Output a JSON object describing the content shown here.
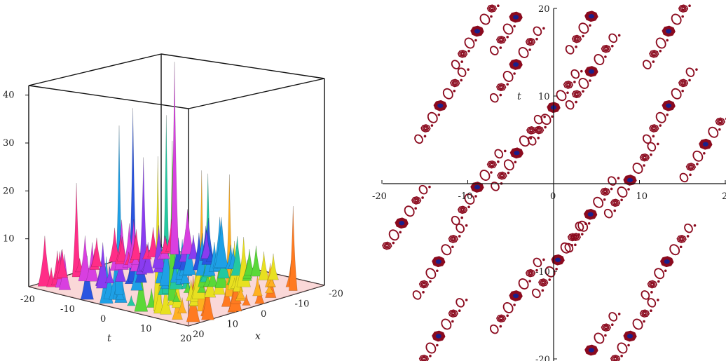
{
  "chart_data": [
    {
      "type": "surface3d",
      "title": "",
      "x_axis": {
        "label": "x",
        "ticks": [
          "-20",
          "-10",
          "0",
          "10",
          "20"
        ],
        "range": [
          -20,
          20
        ]
      },
      "t_axis": {
        "label": "t",
        "ticks": [
          "-20",
          "-10",
          "0",
          "10",
          "20"
        ],
        "range": [
          -20,
          20
        ]
      },
      "z_axis": {
        "ticks": [
          "10",
          "20",
          "30",
          "40"
        ],
        "range": [
          0,
          42
        ]
      },
      "colors": [
        "#ff2d87",
        "#d83fe0",
        "#8a3cf0",
        "#2a55e0",
        "#1ea0e6",
        "#24c8a0",
        "#5ad838",
        "#e8e020",
        "#ffb020",
        "#ff7a20",
        "#f04050"
      ],
      "peaks": [
        {
          "t": -15,
          "x": -18,
          "z": 41
        },
        {
          "t": -8,
          "x": 3,
          "z": 37
        },
        {
          "t": -4,
          "x": 12,
          "z": 36
        },
        {
          "t": 2,
          "x": 5,
          "z": 38
        },
        {
          "t": 6,
          "x": 8,
          "z": 34
        },
        {
          "t": 9,
          "x": 16,
          "z": 33
        },
        {
          "t": -12,
          "x": -5,
          "z": 24
        },
        {
          "t": 12,
          "x": -2,
          "z": 26
        },
        {
          "t": 15,
          "x": 10,
          "z": 30
        },
        {
          "t": 0,
          "x": -10,
          "z": 22
        },
        {
          "t": -18,
          "x": 8,
          "z": 20
        },
        {
          "t": 18,
          "x": -14,
          "z": 18
        }
      ]
    },
    {
      "type": "contour",
      "title": "",
      "x_axis": {
        "label": "",
        "ticks": [
          "-20",
          "-10",
          "0",
          "10",
          "20"
        ],
        "range": [
          -20,
          20
        ]
      },
      "y_axis": {
        "label": "t",
        "ticks": [
          "-20",
          "-10",
          "10",
          "20"
        ],
        "range": [
          -20,
          20
        ]
      },
      "line_color": "#8b0a1e",
      "core_color": "#1a1f8a",
      "lattice": {
        "period_x": 10,
        "period_t": 4.8,
        "tilt": 1.22
      },
      "primary_centers": [
        {
          "x": -13.2,
          "t": 8.9
        },
        {
          "x": -4.3,
          "t": 3.5
        },
        {
          "x": 4.3,
          "t": -3.5
        },
        {
          "x": 13.2,
          "t": -8.9
        },
        {
          "x": -4.4,
          "t": 13.6
        },
        {
          "x": 4.4,
          "t": 19.1
        },
        {
          "x": -8.9,
          "t": -0.4
        },
        {
          "x": 8.9,
          "t": 0.4
        },
        {
          "x": 0,
          "t": 8.7
        },
        {
          "x": -13.4,
          "t": -8.9
        },
        {
          "x": 13.4,
          "t": 8.9
        },
        {
          "x": 0.5,
          "t": -8.7
        },
        {
          "x": 4.4,
          "t": 12.8
        },
        {
          "x": -4.4,
          "t": -12.8
        },
        {
          "x": 13.4,
          "t": 17.4
        },
        {
          "x": -13.4,
          "t": -17.4
        },
        {
          "x": -4.4,
          "t": 19.0
        },
        {
          "x": 4.4,
          "t": -19.0
        },
        {
          "x": 8.9,
          "t": -17.4
        },
        {
          "x": -8.9,
          "t": 17.4
        },
        {
          "x": -17.7,
          "t": -4.5
        },
        {
          "x": 17.7,
          "t": 4.5
        }
      ]
    }
  ],
  "labels": {
    "surface_t_axis": "t",
    "surface_x_axis": "x",
    "contour_t_axis": "t"
  }
}
